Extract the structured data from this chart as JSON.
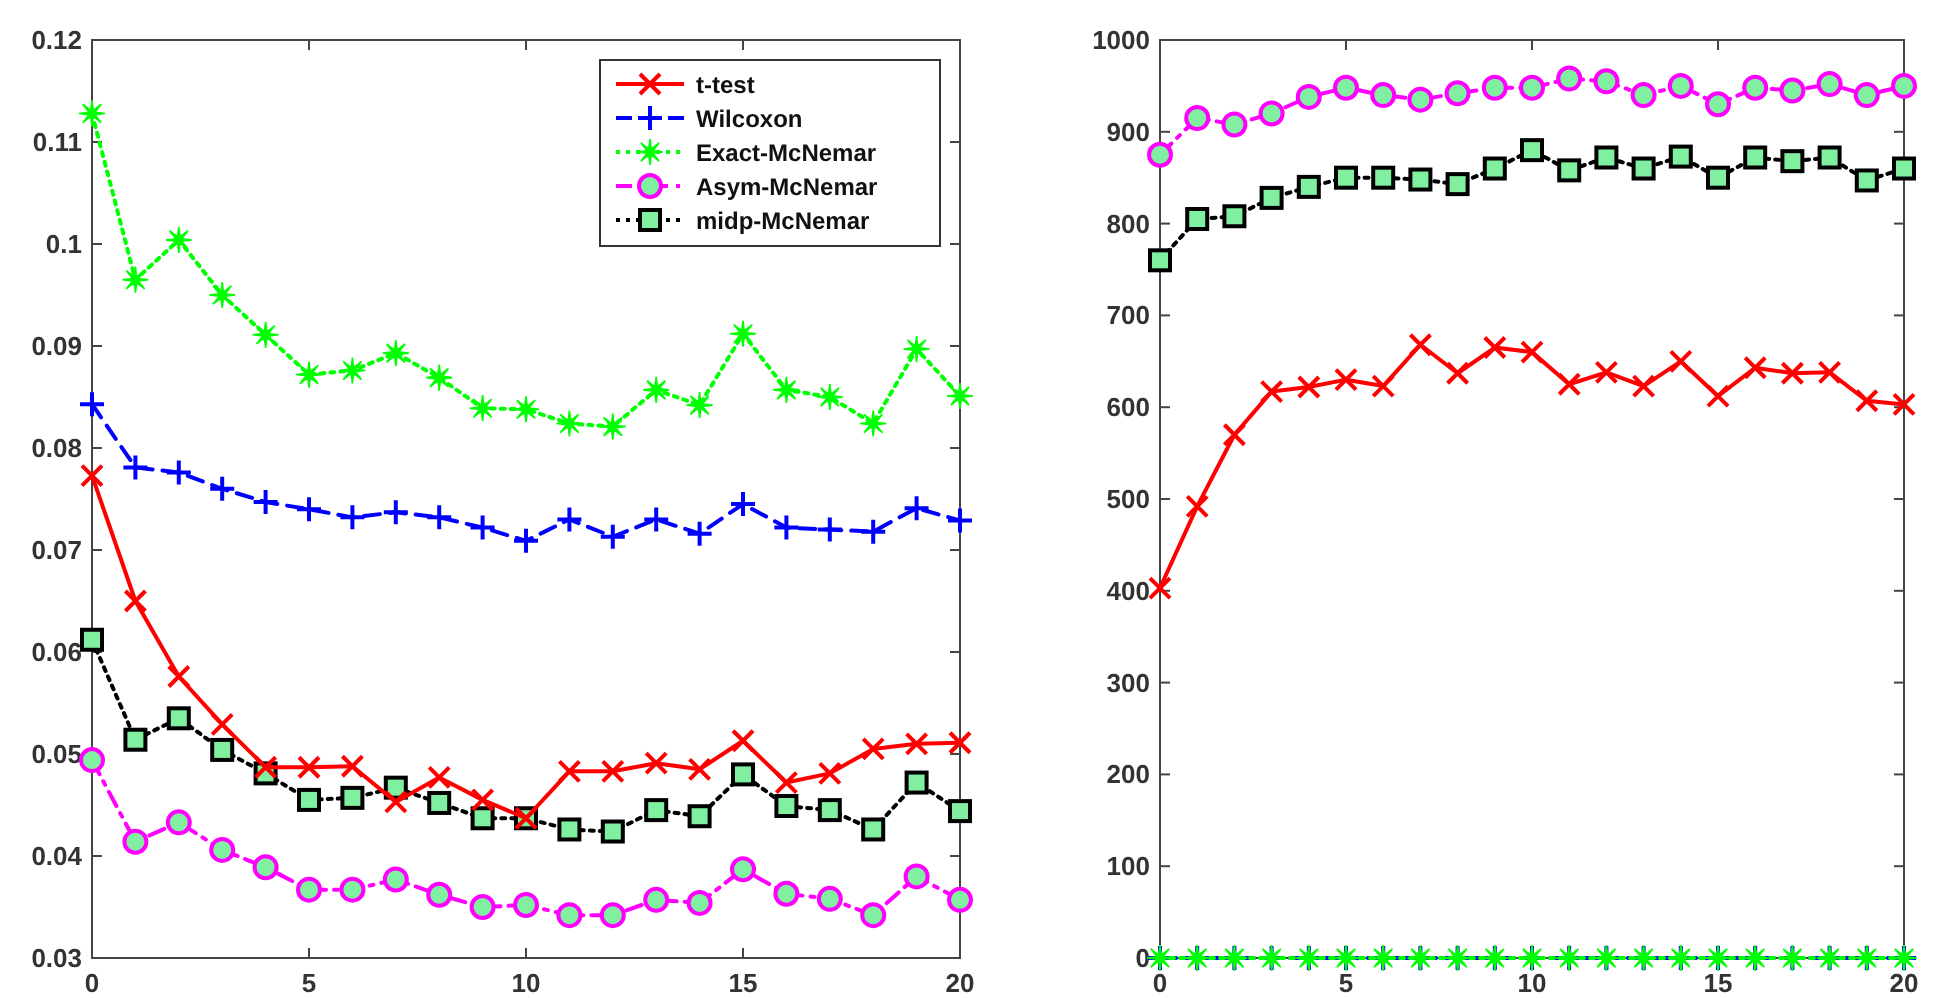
{
  "chart_data": [
    {
      "type": "line",
      "x": [
        0,
        1,
        2,
        3,
        4,
        5,
        6,
        7,
        8,
        9,
        10,
        11,
        12,
        13,
        14,
        15,
        16,
        17,
        18,
        19,
        20
      ],
      "xlim": [
        0,
        20
      ],
      "xticks": [
        0,
        5,
        10,
        15,
        20
      ],
      "ylim": [
        0.03,
        0.12
      ],
      "yticks": [
        0.03,
        0.04,
        0.05,
        0.06,
        0.07,
        0.08,
        0.09,
        0.1,
        0.11,
        0.12
      ],
      "legend": "top right",
      "series": [
        {
          "name": "t-test",
          "color": "#ff0000",
          "marker": "x",
          "line_style": "solid",
          "values": [
            0.0773,
            0.065,
            0.0576,
            0.0529,
            0.0487,
            0.0487,
            0.0488,
            0.0453,
            0.0477,
            0.0455,
            0.0437,
            0.0483,
            0.0483,
            0.0491,
            0.0485,
            0.0513,
            0.0472,
            0.0481,
            0.0505,
            0.051,
            0.0511
          ]
        },
        {
          "name": "Wilcoxon",
          "color": "#0000ff",
          "marker": "cross",
          "line_style": "dashed",
          "values": [
            0.0843,
            0.0781,
            0.0776,
            0.076,
            0.0747,
            0.074,
            0.0732,
            0.0737,
            0.0732,
            0.0722,
            0.0709,
            0.073,
            0.0713,
            0.073,
            0.0716,
            0.0745,
            0.0722,
            0.072,
            0.0718,
            0.0741,
            0.0729
          ]
        },
        {
          "name": "Exact-McNemar",
          "color": "#00ff00",
          "marker": "star",
          "line_style": "dotted",
          "values": [
            0.1128,
            0.0965,
            0.1004,
            0.095,
            0.0911,
            0.0872,
            0.0876,
            0.0893,
            0.0869,
            0.0839,
            0.0838,
            0.0824,
            0.0821,
            0.0857,
            0.0842,
            0.0912,
            0.0857,
            0.085,
            0.0824,
            0.0897,
            0.0851
          ]
        },
        {
          "name": "Asym-McNemar",
          "color": "#ff00ff",
          "marker": "circle",
          "line_style": "dashdot",
          "values": [
            0.0494,
            0.0414,
            0.0433,
            0.0406,
            0.0389,
            0.0367,
            0.0367,
            0.0377,
            0.0362,
            0.035,
            0.0352,
            0.0342,
            0.0342,
            0.0357,
            0.0354,
            0.0387,
            0.0363,
            0.0358,
            0.0342,
            0.038,
            0.0357
          ]
        },
        {
          "name": "midp-McNemar",
          "color": "#000000",
          "marker": "square",
          "line_style": "dotted",
          "values": [
            0.0612,
            0.0514,
            0.0535,
            0.0504,
            0.0481,
            0.0455,
            0.0457,
            0.0467,
            0.0452,
            0.0437,
            0.0437,
            0.0426,
            0.0424,
            0.0445,
            0.0439,
            0.048,
            0.0449,
            0.0445,
            0.0426,
            0.0472,
            0.0444
          ]
        }
      ]
    },
    {
      "type": "line",
      "x": [
        0,
        1,
        2,
        3,
        4,
        5,
        6,
        7,
        8,
        9,
        10,
        11,
        12,
        13,
        14,
        15,
        16,
        17,
        18,
        19,
        20
      ],
      "xlim": [
        0,
        20
      ],
      "xticks": [
        0,
        5,
        10,
        15,
        20
      ],
      "ylim": [
        0,
        1000
      ],
      "yticks": [
        0,
        100,
        200,
        300,
        400,
        500,
        600,
        700,
        800,
        900,
        1000
      ],
      "series": [
        {
          "color": "#ff0000",
          "marker": "x",
          "line_style": "solid",
          "values": [
            403,
            492,
            570,
            617,
            622,
            630,
            623,
            668,
            637,
            665,
            660,
            625,
            638,
            623,
            650,
            612,
            643,
            637,
            638,
            607,
            603
          ]
        },
        {
          "color": "#0000ff",
          "marker": "cross",
          "line_style": "dashed",
          "values": [
            0,
            0,
            0,
            0,
            0,
            0,
            0,
            0,
            0,
            0,
            0,
            0,
            0,
            0,
            0,
            0,
            0,
            0,
            0,
            0,
            0
          ]
        },
        {
          "color": "#00ff00",
          "marker": "star",
          "line_style": "dotted",
          "values": [
            0,
            0,
            0,
            0,
            0,
            0,
            0,
            0,
            0,
            0,
            0,
            0,
            0,
            0,
            0,
            0,
            0,
            0,
            0,
            0,
            0
          ]
        },
        {
          "color": "#ff00ff",
          "marker": "circle",
          "line_style": "dashdot",
          "values": [
            875,
            915,
            908,
            920,
            938,
            948,
            940,
            935,
            942,
            948,
            948,
            958,
            955,
            940,
            950,
            930,
            948,
            945,
            952,
            940,
            950
          ]
        },
        {
          "color": "#000000",
          "marker": "square",
          "line_style": "dotted",
          "values": [
            760,
            805,
            808,
            828,
            840,
            850,
            850,
            848,
            843,
            860,
            880,
            858,
            872,
            860,
            873,
            850,
            872,
            868,
            872,
            847,
            860
          ]
        }
      ]
    }
  ]
}
